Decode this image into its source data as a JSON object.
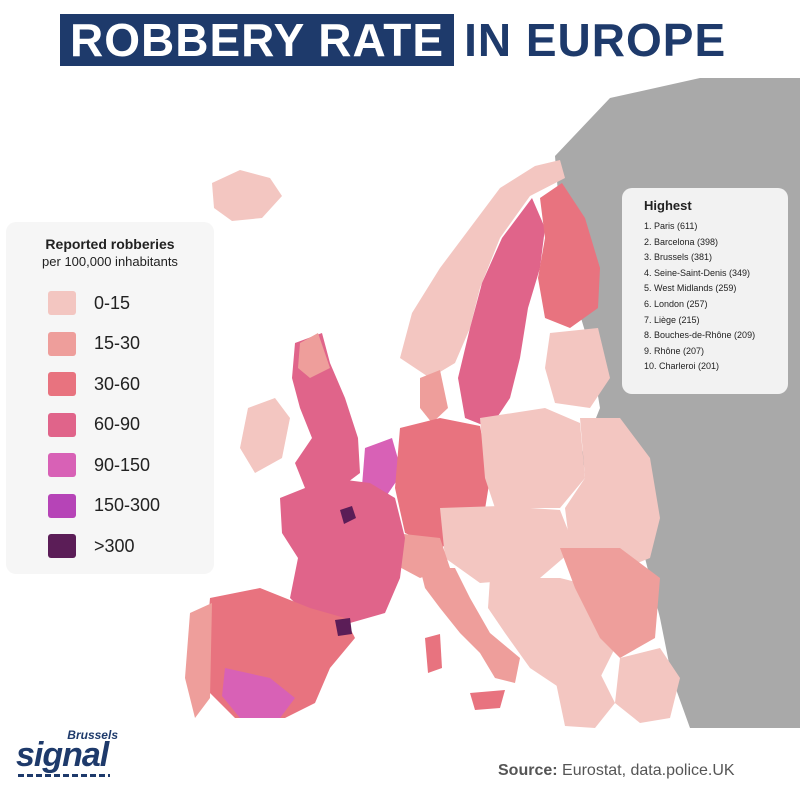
{
  "title": {
    "highlight": "ROBBERY RATE",
    "rest": "IN EUROPE"
  },
  "legend": {
    "title": "Reported robberies",
    "subtitle": "per 100,000 inhabitants",
    "items": [
      {
        "label": "0-15",
        "color": "#f3c6c1"
      },
      {
        "label": "15-30",
        "color": "#ee9e9b"
      },
      {
        "label": "30-60",
        "color": "#e8737f"
      },
      {
        "label": "60-90",
        "color": "#e0648a"
      },
      {
        "label": "90-150",
        "color": "#d861b6"
      },
      {
        "label": "150-300",
        "color": "#b644b7"
      },
      {
        "label": ">300",
        "color": "#5b1d57"
      }
    ]
  },
  "highest": {
    "title": "Highest",
    "items": [
      "1. Paris (611)",
      "2. Barcelona (398)",
      "3. Brussels (381)",
      "4. Seine-Saint-Denis (349)",
      "5. West Midlands (259)",
      "6. London (257)",
      "7. Liège (215)",
      "8. Bouches-de-Rhône (209)",
      "9. Rhône (207)",
      "10. Charleroi (201)"
    ]
  },
  "logo": {
    "top": "Brussels",
    "main": "signal"
  },
  "source": {
    "label": "Source:",
    "text": "Eurostat, data.police.UK"
  },
  "colors": {
    "title_bg": "#1e3a6b",
    "no_data": "#a9a9a9",
    "sea": "#ffffff"
  }
}
